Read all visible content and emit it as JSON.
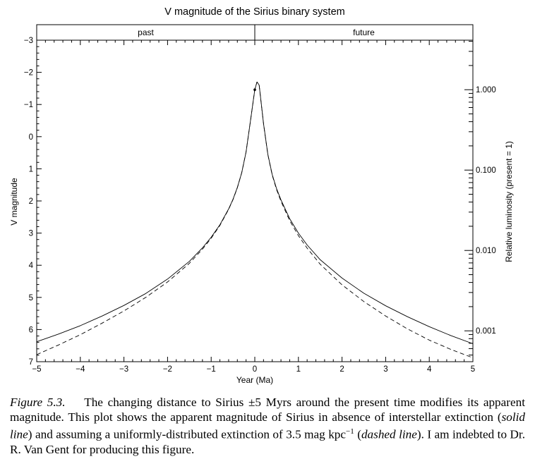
{
  "chart_data": {
    "type": "line",
    "title": "V magnitude of the Sirius binary system",
    "xlabel": "Year (Ma)",
    "ylabel": "V magnitude",
    "ylabel_right": "Relative luminosity (present = 1)",
    "xlim": [
      -5,
      5
    ],
    "ylim": [
      7,
      -3
    ],
    "y_inverted": true,
    "x_ticks": [
      "−5",
      "−4",
      "−3",
      "−2",
      "−1",
      "0",
      "1",
      "2",
      "3",
      "4",
      "5"
    ],
    "y_ticks": [
      "−3",
      "−2",
      "−1",
      "0",
      "1",
      "2",
      "3",
      "4",
      "5",
      "6",
      "7"
    ],
    "right_ticks": [
      {
        "label": "1.000",
        "value": 1.0
      },
      {
        "label": "0.100",
        "value": 0.1
      },
      {
        "label": "0.010",
        "value": 0.01
      },
      {
        "label": "0.001",
        "value": 0.001
      }
    ],
    "right_axis_scale": "log",
    "present_magnitude": -1.46,
    "regions": [
      "past",
      "future"
    ],
    "marker": {
      "x": 0,
      "y": -1.46
    },
    "series": [
      {
        "line_style": "solid",
        "x": [
          -5,
          -4.5,
          -4,
          -3.5,
          -3,
          -2.5,
          -2,
          -1.5,
          -1.2,
          -1,
          -0.8,
          -0.6,
          -0.5,
          -0.4,
          -0.3,
          -0.2,
          -0.1,
          0,
          0.05,
          0.1,
          0.2,
          0.3,
          0.4,
          0.5,
          0.6,
          0.8,
          1,
          1.2,
          1.5,
          2,
          2.5,
          3,
          3.5,
          4,
          4.5,
          5
        ],
        "y": [
          6.38,
          6.14,
          5.88,
          5.58,
          5.25,
          4.88,
          4.43,
          3.88,
          3.46,
          3.13,
          2.74,
          2.25,
          1.95,
          1.58,
          1.12,
          0.48,
          -0.48,
          -1.46,
          -1.7,
          -1.6,
          -0.4,
          0.55,
          1.18,
          1.62,
          1.97,
          2.55,
          3.0,
          3.37,
          3.83,
          4.4,
          4.87,
          5.26,
          5.6,
          5.91,
          6.19,
          6.44
        ]
      },
      {
        "line_style": "dashed",
        "x": [
          -5,
          -4.5,
          -4,
          -3.5,
          -3,
          -2.5,
          -2,
          -1.5,
          -1.2,
          -1,
          -0.8,
          -0.6,
          -0.5,
          -0.4,
          -0.3,
          -0.2,
          -0.1,
          0,
          0.05,
          0.1,
          0.2,
          0.3,
          0.4,
          0.5,
          0.6,
          0.8,
          1,
          1.2,
          1.5,
          2,
          2.5,
          3,
          3.5,
          4,
          4.5,
          5
        ],
        "y": [
          6.78,
          6.48,
          6.16,
          5.8,
          5.42,
          5.0,
          4.52,
          3.94,
          3.5,
          3.16,
          2.76,
          2.26,
          1.96,
          1.59,
          1.12,
          0.48,
          -0.48,
          -1.46,
          -1.7,
          -1.6,
          -0.4,
          0.56,
          1.2,
          1.65,
          2.01,
          2.61,
          3.08,
          3.47,
          3.97,
          4.61,
          5.13,
          5.58,
          5.98,
          6.33,
          6.62,
          6.88
        ]
      }
    ]
  },
  "caption": {
    "label": "Figure 5.3.",
    "text_1": "The changing distance to Sirius ±5 Myrs around the present time modifies its apparent magnitude. This plot shows the apparent magnitude of Sirius in absence of interstellar extinction (",
    "italic_1": "solid line",
    "text_2": ") and assuming a uniformly-distributed extinction of 3.5 mag kpc",
    "superscript": "−1",
    "text_3": " (",
    "italic_2": "dashed line",
    "text_4": "). I am indebted to Dr. R. Van Gent for producing this figure."
  }
}
